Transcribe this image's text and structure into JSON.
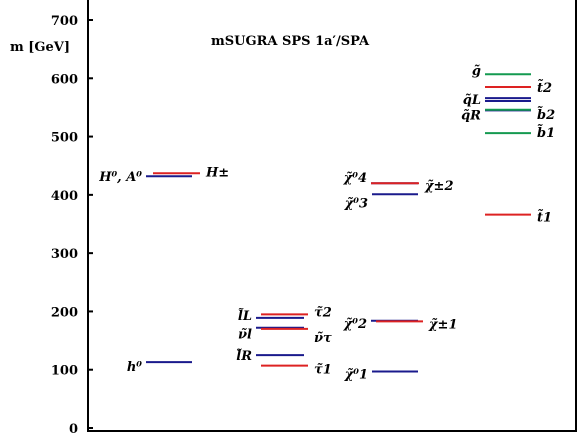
{
  "chart_data": {
    "type": "table",
    "title": "mSUGRA SPS 1a′/SPA",
    "ylabel": "m [GeV]",
    "ylim": [
      0,
      700
    ],
    "yticks": [
      0,
      100,
      200,
      300,
      400,
      500,
      600,
      700
    ],
    "colors": {
      "blue": "#1a1a8c",
      "red": "#dd2222",
      "green": "#149a50"
    },
    "levels": [
      {
        "label": "h⁰",
        "label_side": "left",
        "column": 1,
        "mass": 113,
        "color": "blue"
      },
      {
        "label": "H⁰, A⁰",
        "label_side": "left",
        "column": 1,
        "mass": 432,
        "color": "blue"
      },
      {
        "label": "H±",
        "label_side": "right",
        "column": 1,
        "mass": 437,
        "color": "red"
      },
      {
        "label": "l̃L",
        "label_side": "left",
        "column": 2,
        "mass": 189,
        "color": "blue"
      },
      {
        "label": "τ̃2",
        "label_side": "right",
        "column": 2,
        "mass": 195,
        "color": "red"
      },
      {
        "label": "ν̃l",
        "label_side": "left",
        "column": 2,
        "mass": 172,
        "color": "blue"
      },
      {
        "label": "ν̃τ",
        "label_side": "right",
        "column": 2,
        "mass": 170,
        "color": "red"
      },
      {
        "label": "l̃R",
        "label_side": "left",
        "column": 2,
        "mass": 125,
        "color": "blue"
      },
      {
        "label": "τ̃1",
        "label_side": "right",
        "column": 2,
        "mass": 107,
        "color": "red"
      },
      {
        "label": "χ̃⁰4",
        "label_side": "left",
        "column": 3,
        "mass": 420,
        "color": "blue"
      },
      {
        "label": "χ̃⁰3",
        "label_side": "left",
        "column": 3,
        "mass": 401,
        "color": "blue"
      },
      {
        "label": "χ̃±2",
        "label_side": "right",
        "column": 3,
        "mass": 420,
        "color": "red"
      },
      {
        "label": "χ̃⁰2",
        "label_side": "left",
        "column": 3,
        "mass": 184,
        "color": "blue"
      },
      {
        "label": "χ̃±1",
        "label_side": "right",
        "column": 3,
        "mass": 183,
        "color": "red"
      },
      {
        "label": "χ̃⁰1",
        "label_side": "left",
        "column": 3,
        "mass": 97,
        "color": "blue"
      },
      {
        "label": "g̃",
        "label_side": "left",
        "column": 4,
        "mass": 607,
        "color": "green"
      },
      {
        "label": "t̃2",
        "label_side": "right",
        "column": 4,
        "mass": 585,
        "color": "red"
      },
      {
        "label": "q̃L",
        "label_side": "left",
        "column": 4,
        "mass": 566,
        "color": "blue"
      },
      {
        "label": "",
        "label_side": "none",
        "column": 4,
        "mass": 561,
        "color": "blue"
      },
      {
        "label": "q̃R",
        "label_side": "left",
        "column": 4,
        "mass": 545,
        "color": "blue"
      },
      {
        "label": "b̃2",
        "label_side": "right",
        "column": 4,
        "mass": 546,
        "color": "green"
      },
      {
        "label": "b̃1",
        "label_side": "right",
        "column": 4,
        "mass": 506,
        "color": "green"
      },
      {
        "label": "t̃1",
        "label_side": "right",
        "column": 4,
        "mass": 366,
        "color": "red"
      }
    ]
  }
}
